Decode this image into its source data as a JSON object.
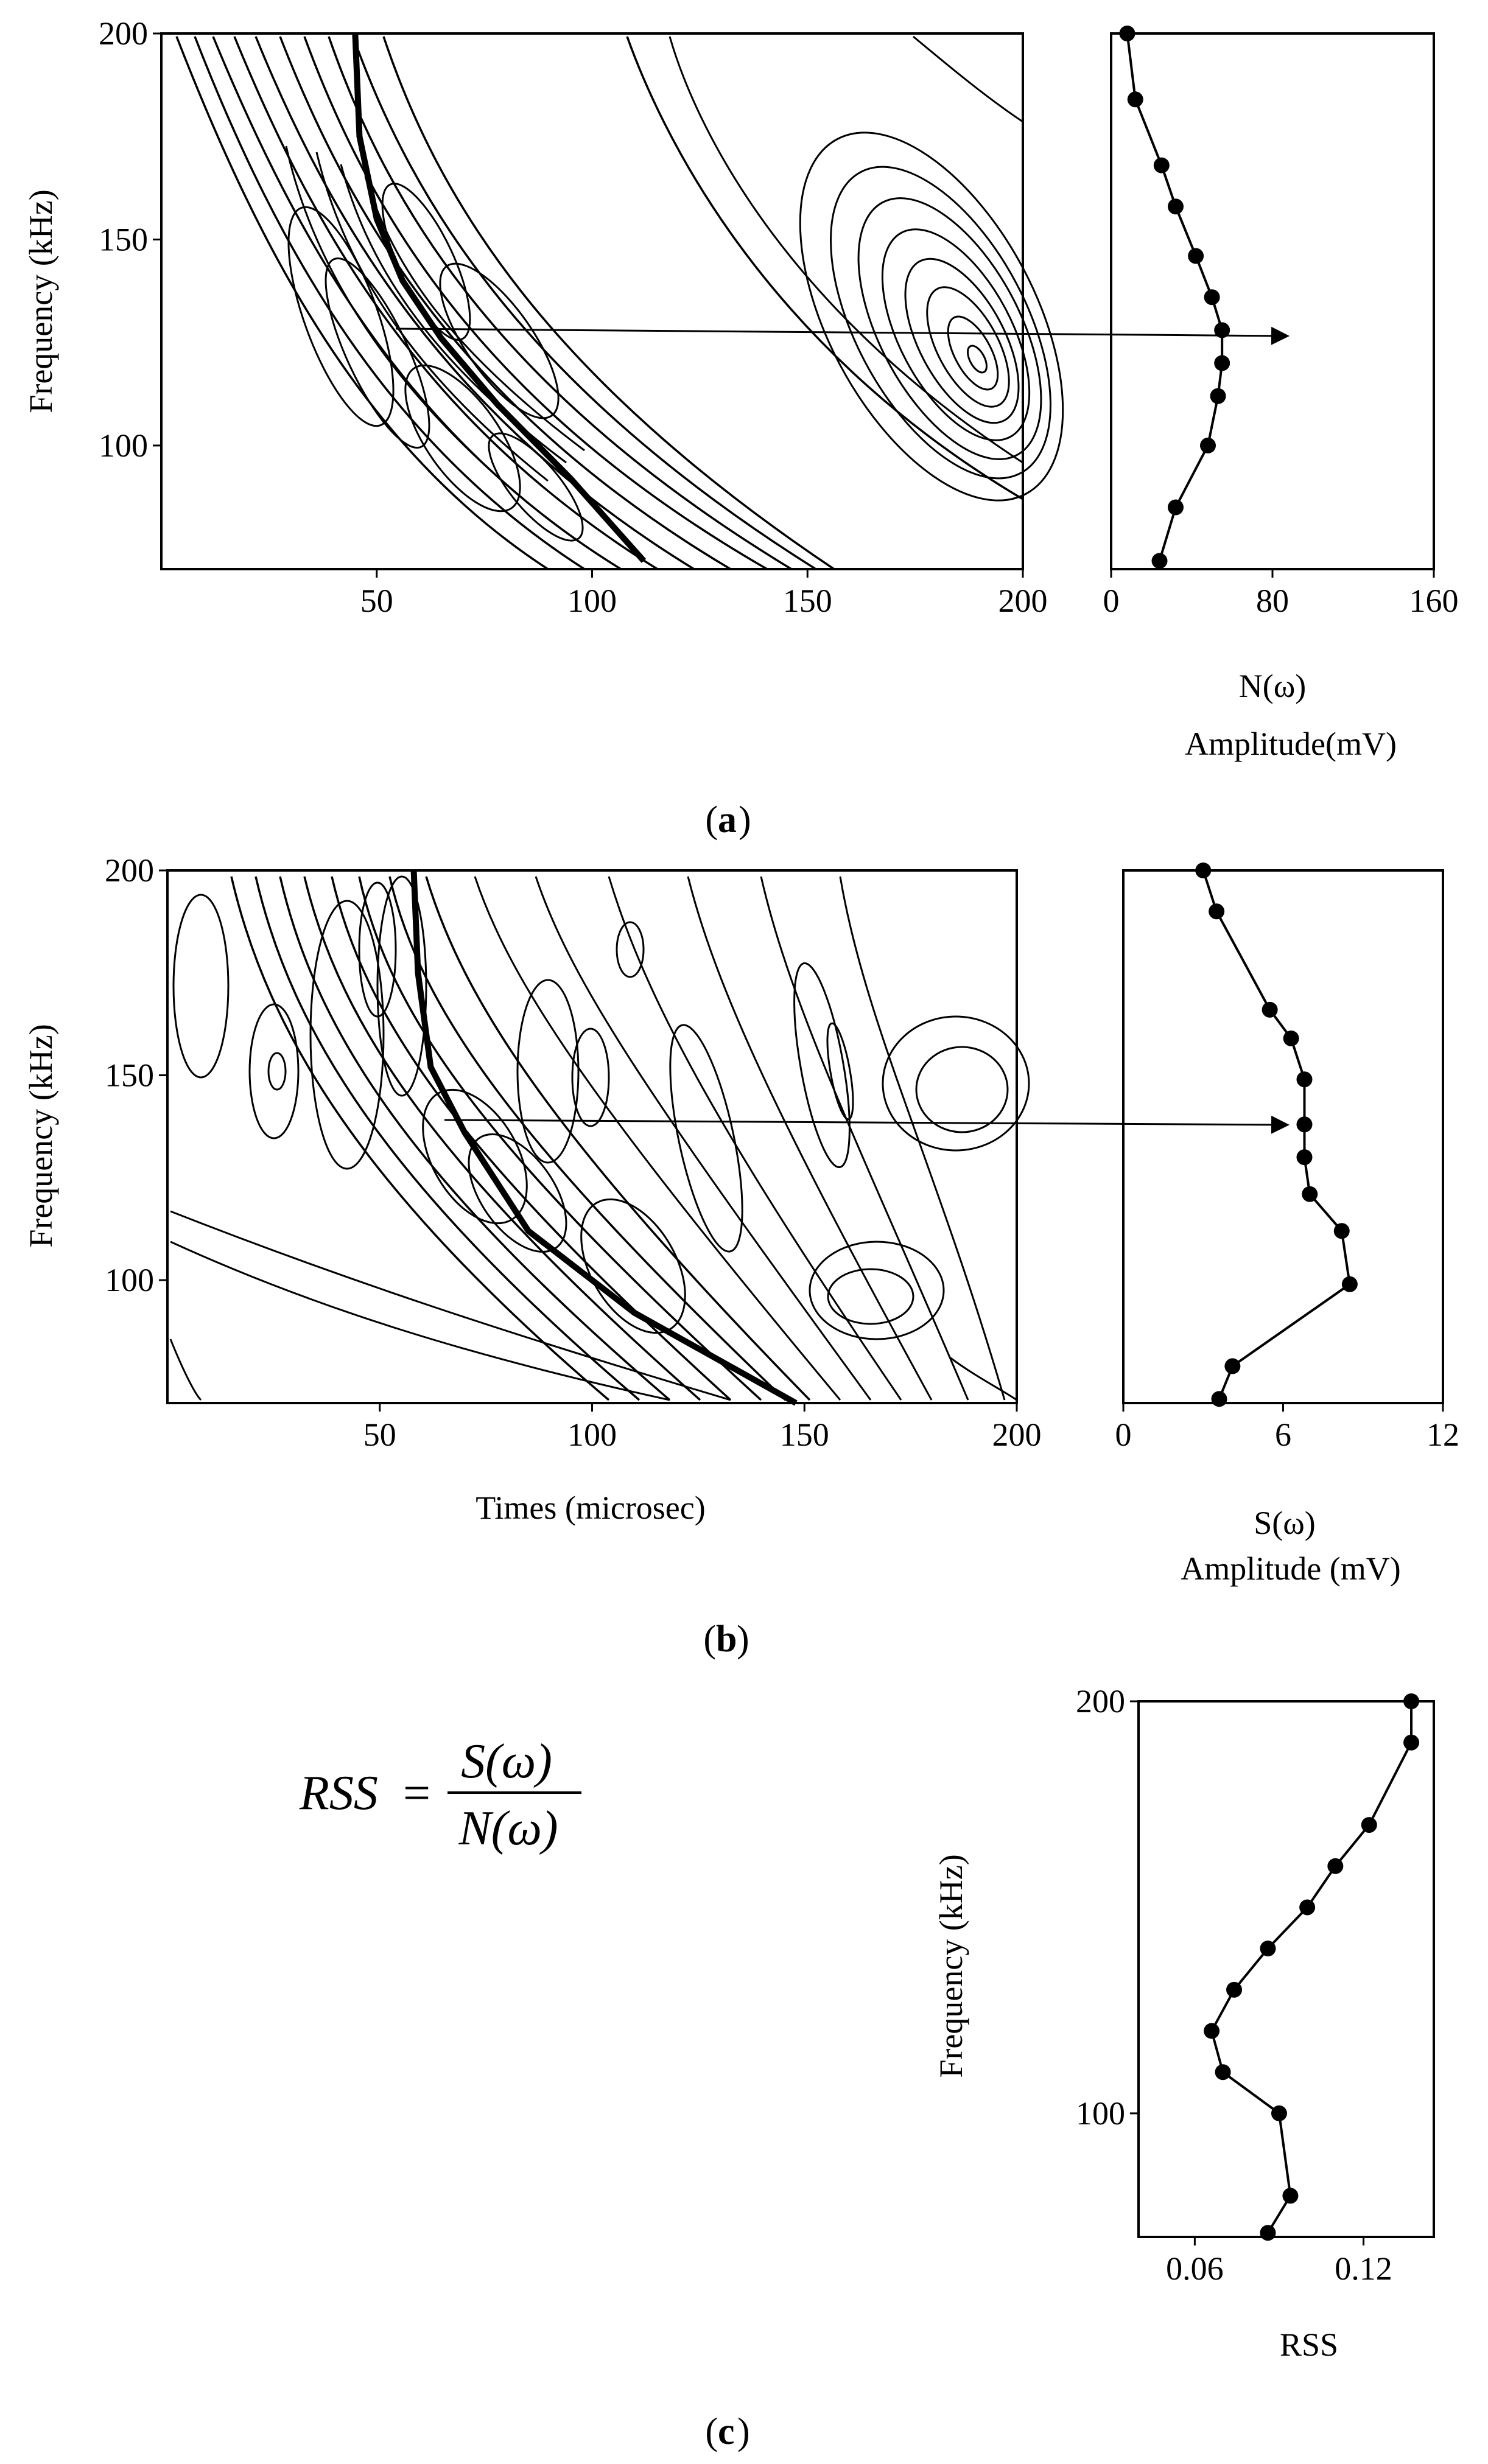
{
  "chart_data": [
    {
      "id": "a-contour",
      "type": "contour",
      "xlim": [
        0,
        200
      ],
      "ylim": [
        70,
        200
      ],
      "xticks": [
        "50",
        "100",
        "150",
        "200"
      ],
      "yticks": [
        "100",
        "150",
        "200"
      ],
      "xlabel": "",
      "ylabel": "Frequency (kHz)",
      "dispersion_curve": [
        [
          45,
          200
        ],
        [
          46,
          175
        ],
        [
          50,
          155
        ],
        [
          56,
          140
        ],
        [
          65,
          126
        ],
        [
          78,
          110
        ],
        [
          95,
          92
        ],
        [
          112,
          72
        ]
      ],
      "annotation": "arrow to amplitude spectrum"
    },
    {
      "id": "a-spectrum",
      "type": "line",
      "xlim": [
        0,
        160
      ],
      "ylim": [
        70,
        200
      ],
      "xticks": [
        "0",
        "80",
        "160"
      ],
      "xlabel": "N(ω)",
      "xlabel2": "Amplitude(mV)",
      "points": [
        [
          8,
          200
        ],
        [
          12,
          184
        ],
        [
          25,
          168
        ],
        [
          32,
          158
        ],
        [
          42,
          146
        ],
        [
          50,
          136
        ],
        [
          55,
          128
        ],
        [
          55,
          120
        ],
        [
          53,
          112
        ],
        [
          48,
          100
        ],
        [
          32,
          85
        ],
        [
          24,
          72
        ]
      ]
    },
    {
      "id": "b-contour",
      "type": "contour",
      "xlim": [
        0,
        200
      ],
      "ylim": [
        70,
        200
      ],
      "xticks": [
        "50",
        "100",
        "150",
        "200"
      ],
      "yticks": [
        "100",
        "150",
        "200"
      ],
      "xlabel": "Times (microsec)",
      "ylabel": "Frequency (kHz)",
      "dispersion_curve": [
        [
          58,
          200
        ],
        [
          59,
          175
        ],
        [
          62,
          152
        ],
        [
          70,
          136
        ],
        [
          85,
          112
        ],
        [
          110,
          92
        ],
        [
          148,
          70
        ]
      ],
      "annotation": "arrow to amplitude spectrum"
    },
    {
      "id": "b-spectrum",
      "type": "line",
      "xlim": [
        0,
        12
      ],
      "ylim": [
        70,
        200
      ],
      "xticks": [
        "0",
        "6",
        "12"
      ],
      "xlabel": "S(ω)",
      "xlabel2": "Amplitude (mV)",
      "points": [
        [
          3,
          200
        ],
        [
          3.5,
          190
        ],
        [
          5.5,
          166
        ],
        [
          6.3,
          159
        ],
        [
          6.8,
          149
        ],
        [
          6.8,
          138
        ],
        [
          6.8,
          130
        ],
        [
          7.0,
          121
        ],
        [
          8.2,
          112
        ],
        [
          8.5,
          99
        ],
        [
          4.1,
          79
        ],
        [
          3.6,
          71
        ]
      ]
    },
    {
      "id": "c-rss",
      "type": "line",
      "xlim": [
        0.04,
        0.145
      ],
      "ylim": [
        70,
        200
      ],
      "xticks": [
        "0.06",
        "0.12"
      ],
      "yticks": [
        "100",
        "200"
      ],
      "xlabel": "RSS",
      "ylabel": "Frequency (kHz)",
      "points": [
        [
          0.137,
          200
        ],
        [
          0.137,
          190
        ],
        [
          0.122,
          170
        ],
        [
          0.11,
          160
        ],
        [
          0.1,
          150
        ],
        [
          0.086,
          140
        ],
        [
          0.074,
          130
        ],
        [
          0.066,
          120
        ],
        [
          0.07,
          110
        ],
        [
          0.09,
          100
        ],
        [
          0.094,
          80
        ],
        [
          0.086,
          71
        ]
      ]
    }
  ],
  "captions": [
    "(",
    "a",
    ")",
    "b",
    "c"
  ],
  "equation": {
    "lhs": "RSS",
    "equals": "=",
    "numerator": "S(ω)",
    "denominator": "N(ω)"
  }
}
